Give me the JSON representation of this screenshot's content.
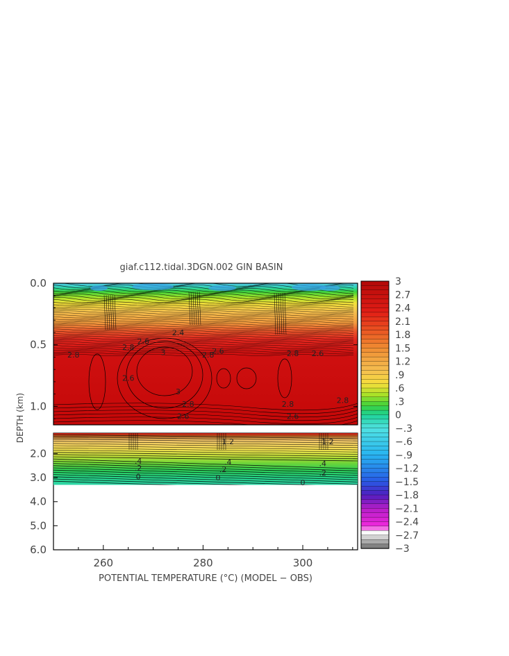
{
  "chart_data": {
    "type": "heatmap",
    "title": "giaf.c112.tidal.3DGN.002 GIN BASIN",
    "xlabel": "POTENTIAL TEMPERATURE (°C) (MODEL − OBS)",
    "ylabel": "DEPTH (km)",
    "xlim": [
      250,
      311
    ],
    "x_ticks": [
      "260",
      "280",
      "300"
    ],
    "x_tick_values": [
      260,
      280,
      300
    ],
    "upper_panel": {
      "ylim": [
        0.0,
        1.15
      ],
      "y_ticks": [
        "0.0",
        "0.5",
        "1.0"
      ],
      "y_tick_values": [
        0.0,
        0.5,
        1.0
      ]
    },
    "lower_panel": {
      "ylim": [
        1.15,
        6.0
      ],
      "y_ticks": [
        "2.0",
        "3.0",
        "4.0",
        "5.0",
        "6.0"
      ],
      "y_tick_values": [
        2.0,
        3.0,
        4.0,
        5.0,
        6.0
      ],
      "data_bottom_depth": 3.3
    },
    "colorbar": {
      "range": [
        -3,
        3
      ],
      "labels": [
        "3",
        "2.7",
        "2.4",
        "2.1",
        "1.8",
        "1.5",
        "1.2",
        ".9",
        ".6",
        ".3",
        "0",
        "−.3",
        "−.6",
        "−.9",
        "−1.2",
        "−1.5",
        "−1.8",
        "−2.1",
        "−2.4",
        "−2.7",
        "−3"
      ],
      "label_values": [
        3,
        2.7,
        2.4,
        2.1,
        1.8,
        1.5,
        1.2,
        0.9,
        0.6,
        0.3,
        0,
        -0.3,
        -0.6,
        -0.9,
        -1.2,
        -1.5,
        -1.8,
        -2.1,
        -2.4,
        -2.7,
        -3
      ]
    },
    "contour_labels": [
      {
        "text": "2.6",
        "x": 268,
        "depth": 0.47
      },
      {
        "text": "2.8",
        "x": 265,
        "depth": 0.52
      },
      {
        "text": "3",
        "x": 272,
        "depth": 0.56
      },
      {
        "text": "2.8",
        "x": 281,
        "depth": 0.58
      },
      {
        "text": "2.6",
        "x": 283,
        "depth": 0.55
      },
      {
        "text": "2.8",
        "x": 254,
        "depth": 0.58
      },
      {
        "text": "2.6",
        "x": 265,
        "depth": 0.77
      },
      {
        "text": "3",
        "x": 275,
        "depth": 0.88
      },
      {
        "text": "2.8",
        "x": 277,
        "depth": 0.98
      },
      {
        "text": "2.6",
        "x": 276,
        "depth": 1.08
      },
      {
        "text": "2.8",
        "x": 297,
        "depth": 0.98
      },
      {
        "text": "2.6",
        "x": 298,
        "depth": 1.08
      },
      {
        "text": "2.8",
        "x": 308,
        "depth": 0.95
      },
      {
        "text": "2.8",
        "x": 298,
        "depth": 0.57
      },
      {
        "text": "2.6",
        "x": 303,
        "depth": 0.57
      },
      {
        "text": "2.4",
        "x": 275,
        "depth": 0.4
      },
      {
        "text": "0",
        "x": 267,
        "depth": 2.95
      },
      {
        "text": "0",
        "x": 283,
        "depth": 3.0
      },
      {
        "text": "0",
        "x": 300,
        "depth": 3.2
      },
      {
        "text": ".2",
        "x": 267,
        "depth": 2.6
      },
      {
        "text": ".2",
        "x": 284,
        "depth": 2.65
      },
      {
        "text": ".2",
        "x": 304,
        "depth": 2.8
      },
      {
        "text": ".4",
        "x": 267,
        "depth": 2.3
      },
      {
        "text": ".4",
        "x": 285,
        "depth": 2.35
      },
      {
        "text": ".4",
        "x": 304,
        "depth": 2.4
      },
      {
        "text": "1.2",
        "x": 285,
        "depth": 1.5
      },
      {
        "text": "1.2",
        "x": 305,
        "depth": 1.5
      }
    ]
  }
}
